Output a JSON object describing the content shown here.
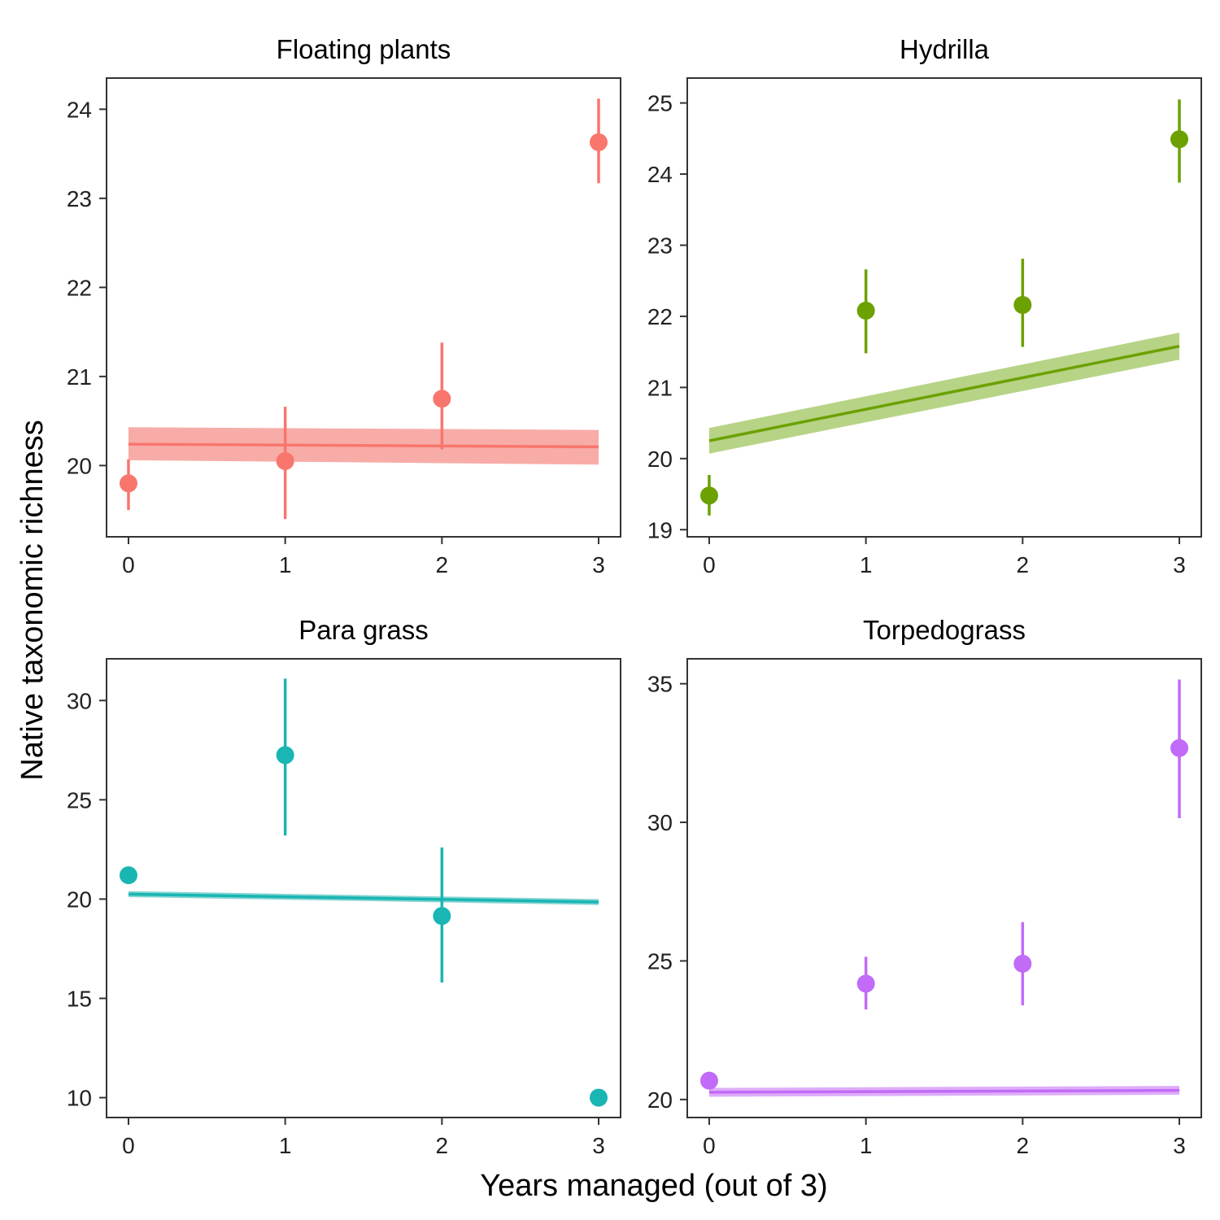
{
  "figure": {
    "xlabel": "Years managed (out of 3)",
    "ylabel": "Native taxonomic richness"
  },
  "chart_data": [
    {
      "type": "scatter",
      "title": "Floating plants",
      "color": "#F8766D",
      "band_color": "#F8A8A3",
      "x_ticks": [
        0,
        1,
        2,
        3
      ],
      "y_ticks": [
        20,
        21,
        22,
        23,
        24
      ],
      "xlim": [
        -0.14,
        3.14
      ],
      "ylim": [
        19.2,
        24.35
      ],
      "points": [
        {
          "x": 0,
          "y": 19.8,
          "lo": 19.5,
          "hi": 20.07
        },
        {
          "x": 1,
          "y": 20.05,
          "lo": 19.4,
          "hi": 20.66
        },
        {
          "x": 2,
          "y": 20.75,
          "lo": 20.18,
          "hi": 21.38
        },
        {
          "x": 3,
          "y": 23.63,
          "lo": 23.17,
          "hi": 24.12
        }
      ],
      "fit": {
        "x": [
          0,
          3
        ],
        "y": [
          20.24,
          20.21
        ],
        "lower": [
          20.06,
          20.01
        ],
        "upper": [
          20.43,
          20.4
        ]
      }
    },
    {
      "type": "scatter",
      "title": "Hydrilla",
      "color": "#6BA100",
      "band_color": "#B3D17F",
      "x_ticks": [
        0,
        1,
        2,
        3
      ],
      "y_ticks": [
        19,
        20,
        21,
        22,
        23,
        24,
        25
      ],
      "xlim": [
        -0.14,
        3.14
      ],
      "ylim": [
        18.9,
        25.35
      ],
      "points": [
        {
          "x": 0,
          "y": 19.48,
          "lo": 19.2,
          "hi": 19.77
        },
        {
          "x": 1,
          "y": 22.08,
          "lo": 21.48,
          "hi": 22.66
        },
        {
          "x": 2,
          "y": 22.16,
          "lo": 21.57,
          "hi": 22.81
        },
        {
          "x": 3,
          "y": 24.49,
          "lo": 23.88,
          "hi": 25.05
        }
      ],
      "fit": {
        "x": [
          0,
          3
        ],
        "y": [
          20.25,
          21.58
        ],
        "lower": [
          20.07,
          21.39
        ],
        "upper": [
          20.43,
          21.77
        ]
      }
    },
    {
      "type": "scatter",
      "title": "Para grass",
      "color": "#19B6B3",
      "band_color": "#7FD3D1",
      "x_ticks": [
        0,
        1,
        2,
        3
      ],
      "y_ticks": [
        10,
        15,
        20,
        25,
        30
      ],
      "xlim": [
        -0.14,
        3.14
      ],
      "ylim": [
        9.0,
        32.1
      ],
      "points": [
        {
          "x": 0,
          "y": 21.2,
          "lo": 21.2,
          "hi": 21.2
        },
        {
          "x": 1,
          "y": 27.25,
          "lo": 23.2,
          "hi": 31.1
        },
        {
          "x": 2,
          "y": 19.15,
          "lo": 15.8,
          "hi": 22.6
        },
        {
          "x": 3,
          "y": 10.0,
          "lo": 10.0,
          "hi": 10.0
        }
      ],
      "fit": {
        "x": [
          0,
          3
        ],
        "y": [
          20.25,
          19.85
        ],
        "lower": [
          20.1,
          19.7
        ],
        "upper": [
          20.4,
          20.0
        ]
      }
    },
    {
      "type": "scatter",
      "title": "Torpedograss",
      "color": "#C16BF8",
      "band_color": "#DCA9F9",
      "x_ticks": [
        0,
        1,
        2,
        3
      ],
      "y_ticks": [
        20,
        25,
        30,
        35
      ],
      "xlim": [
        -0.14,
        3.14
      ],
      "ylim": [
        19.35,
        35.9
      ],
      "points": [
        {
          "x": 0,
          "y": 20.68,
          "lo": 20.68,
          "hi": 20.68
        },
        {
          "x": 1,
          "y": 24.18,
          "lo": 23.25,
          "hi": 25.15
        },
        {
          "x": 2,
          "y": 24.9,
          "lo": 23.4,
          "hi": 26.4
        },
        {
          "x": 3,
          "y": 32.68,
          "lo": 30.15,
          "hi": 35.15
        }
      ],
      "fit": {
        "x": [
          0,
          3
        ],
        "y": [
          20.26,
          20.33
        ],
        "lower": [
          20.1,
          20.17
        ],
        "upper": [
          20.42,
          20.49
        ]
      }
    }
  ]
}
